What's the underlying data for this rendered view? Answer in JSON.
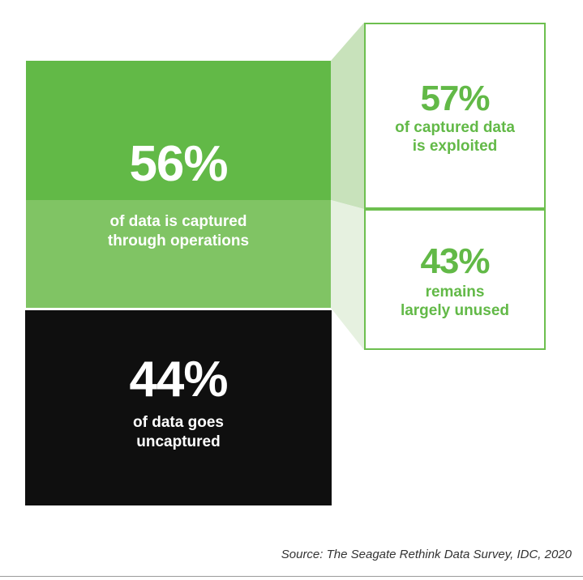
{
  "captured": {
    "percent": "56%",
    "caption_line1": "of data is captured",
    "caption_line2": "through operations"
  },
  "uncaptured": {
    "percent": "44%",
    "caption_line1": "of data goes",
    "caption_line2": "uncaptured"
  },
  "exploited": {
    "percent": "57%",
    "caption_line1": "of captured data",
    "caption_line2": "is exploited"
  },
  "unused": {
    "percent": "43%",
    "caption_line1": "remains",
    "caption_line2": "largely unused"
  },
  "source": "Source: The Seagate Rethink Data Survey, IDC, 2020",
  "colors": {
    "green_primary": "#62b947",
    "green_light": "#80c464",
    "wedge_top": "#c8e2bb",
    "wedge_bottom": "#e6f1e0",
    "black_block": "#0f0f0f"
  }
}
